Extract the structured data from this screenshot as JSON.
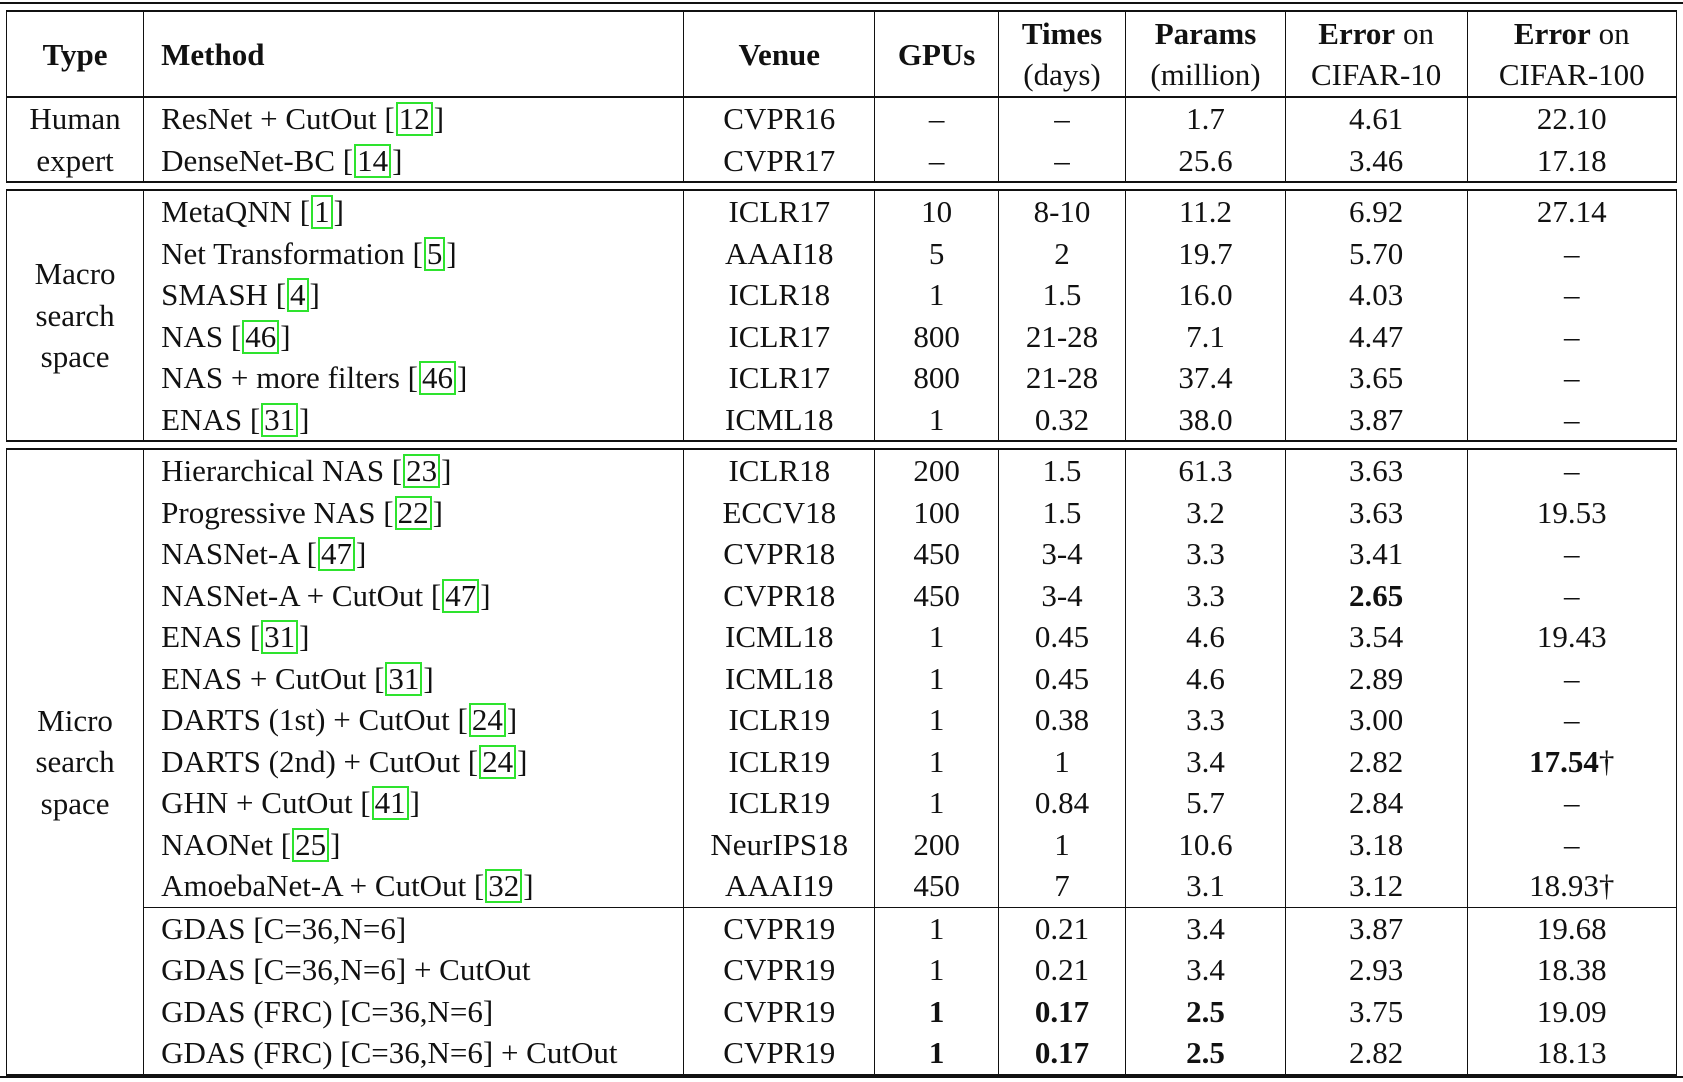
{
  "table": {
    "headers": {
      "type": "Type",
      "method": "Method",
      "venue": "Venue",
      "gpus": "GPUs",
      "times_line1": "Times",
      "times_line2": "(days)",
      "params_line1": "Params",
      "params_line2": "(million)",
      "err10_line1_bold": "Error",
      "err10_line1_rest": " on",
      "err10_line2": "CIFAR-10",
      "err100_line1_bold": "Error",
      "err100_line1_rest": " on",
      "err100_line2": "CIFAR-100"
    },
    "groups": [
      {
        "type_lines": [
          "Human",
          "expert"
        ],
        "rows": [
          {
            "method": "ResNet + CutOut [",
            "cite": "12",
            "method_end": "]",
            "venue": "CVPR16",
            "gpus": "–",
            "times": "–",
            "params": "1.7",
            "err10": "4.61",
            "err100": "22.10"
          },
          {
            "method": "DenseNet-BC [",
            "cite": "14",
            "method_end": "]",
            "venue": "CVPR17",
            "gpus": "–",
            "times": "–",
            "params": "25.6",
            "err10": "3.46",
            "err100": "17.18"
          }
        ]
      },
      {
        "type_lines": [
          "Macro",
          "search",
          "space"
        ],
        "rows": [
          {
            "method": "MetaQNN [",
            "cite": "1",
            "method_end": "]",
            "venue": "ICLR17",
            "gpus": "10",
            "times": "8-10",
            "params": "11.2",
            "err10": "6.92",
            "err100": "27.14"
          },
          {
            "method": "Net Transformation [",
            "cite": "5",
            "method_end": "]",
            "venue": "AAAI18",
            "gpus": "5",
            "times": "2",
            "params": "19.7",
            "err10": "5.70",
            "err100": "–"
          },
          {
            "method": "SMASH [",
            "cite": "4",
            "method_end": "]",
            "venue": "ICLR18",
            "gpus": "1",
            "times": "1.5",
            "params": "16.0",
            "err10": "4.03",
            "err100": "–"
          },
          {
            "method": "NAS [",
            "cite": "46",
            "method_end": "]",
            "venue": "ICLR17",
            "gpus": "800",
            "times": "21-28",
            "params": "7.1",
            "err10": "4.47",
            "err100": "–"
          },
          {
            "method": "NAS + more filters [",
            "cite": "46",
            "method_end": "]",
            "venue": "ICLR17",
            "gpus": "800",
            "times": "21-28",
            "params": "37.4",
            "err10": "3.65",
            "err100": "–"
          },
          {
            "method": "ENAS [",
            "cite": "31",
            "method_end": "]",
            "venue": "ICML18",
            "gpus": "1",
            "times": "0.32",
            "params": "38.0",
            "err10": "3.87",
            "err100": "–"
          }
        ]
      },
      {
        "type_lines": [
          "Micro",
          "search",
          "space"
        ],
        "rows": [
          {
            "method": "Hierarchical NAS [",
            "cite": "23",
            "method_end": "]",
            "venue": "ICLR18",
            "gpus": "200",
            "times": "1.5",
            "params": "61.3",
            "err10": "3.63",
            "err100": "–"
          },
          {
            "method": "Progressive NAS [",
            "cite": "22",
            "method_end": "]",
            "venue": "ECCV18",
            "gpus": "100",
            "times": "1.5",
            "params": "3.2",
            "err10": "3.63",
            "err100": "19.53"
          },
          {
            "method": "NASNet-A [",
            "cite": "47",
            "method_end": "]",
            "venue": "CVPR18",
            "gpus": "450",
            "times": "3-4",
            "params": "3.3",
            "err10": "3.41",
            "err100": "–"
          },
          {
            "method": "NASNet-A + CutOut [",
            "cite": "47",
            "method_end": "]",
            "venue": "CVPR18",
            "gpus": "450",
            "times": "3-4",
            "params": "3.3",
            "err10": "2.65",
            "err100": "–",
            "bold": [
              "err10"
            ]
          },
          {
            "method": "ENAS [",
            "cite": "31",
            "method_end": "]",
            "venue": "ICML18",
            "gpus": "1",
            "times": "0.45",
            "params": "4.6",
            "err10": "3.54",
            "err100": "19.43"
          },
          {
            "method": "ENAS + CutOut [",
            "cite": "31",
            "method_end": "]",
            "venue": "ICML18",
            "gpus": "1",
            "times": "0.45",
            "params": "4.6",
            "err10": "2.89",
            "err100": "–"
          },
          {
            "method": "DARTS (1st) + CutOut [",
            "cite": "24",
            "method_end": "]",
            "venue": "ICLR19",
            "gpus": "1",
            "times": "0.38",
            "params": "3.3",
            "err10": "3.00",
            "err100": "–"
          },
          {
            "method": "DARTS (2nd) + CutOut [",
            "cite": "24",
            "method_end": "]",
            "venue": "ICLR19",
            "gpus": "1",
            "times": "1",
            "params": "3.4",
            "err10": "2.82",
            "err100": "17.54",
            "err100_suffix": "†",
            "bold": [
              "err100"
            ]
          },
          {
            "method": "GHN + CutOut [",
            "cite": "41",
            "method_end": "]",
            "venue": "ICLR19",
            "gpus": "1",
            "times": "0.84",
            "params": "5.7",
            "err10": "2.84",
            "err100": "–"
          },
          {
            "method": "NAONet [",
            "cite": "25",
            "method_end": "]",
            "venue": "NeurIPS18",
            "gpus": "200",
            "times": "1",
            "params": "10.6",
            "err10": "3.18",
            "err100": "–"
          },
          {
            "method": "AmoebaNet-A + CutOut [",
            "cite": "32",
            "method_end": "]",
            "venue": "AAAI19",
            "gpus": "450",
            "times": "7",
            "params": "3.1",
            "err10": "3.12",
            "err100": "18.93",
            "err100_suffix": "†"
          },
          {
            "method": "GDAS [C=36,N=6]",
            "venue": "CVPR19",
            "gpus": "1",
            "times": "0.21",
            "params": "3.4",
            "err10": "3.87",
            "err100": "19.68",
            "sub_start": true
          },
          {
            "method": "GDAS [C=36,N=6] + CutOut",
            "venue": "CVPR19",
            "gpus": "1",
            "times": "0.21",
            "params": "3.4",
            "err10": "2.93",
            "err100": "18.38"
          },
          {
            "method": "GDAS (FRC) [C=36,N=6]",
            "venue": "CVPR19",
            "gpus": "1",
            "times": "0.17",
            "params": "2.5",
            "err10": "3.75",
            "err100": "19.09",
            "bold": [
              "gpus",
              "times",
              "params"
            ]
          },
          {
            "method": "GDAS (FRC) [C=36,N=6] + CutOut",
            "venue": "CVPR19",
            "gpus": "1",
            "times": "0.17",
            "params": "2.5",
            "err10": "2.82",
            "err100": "18.13",
            "bold": [
              "gpus",
              "times",
              "params"
            ]
          }
        ]
      }
    ]
  }
}
